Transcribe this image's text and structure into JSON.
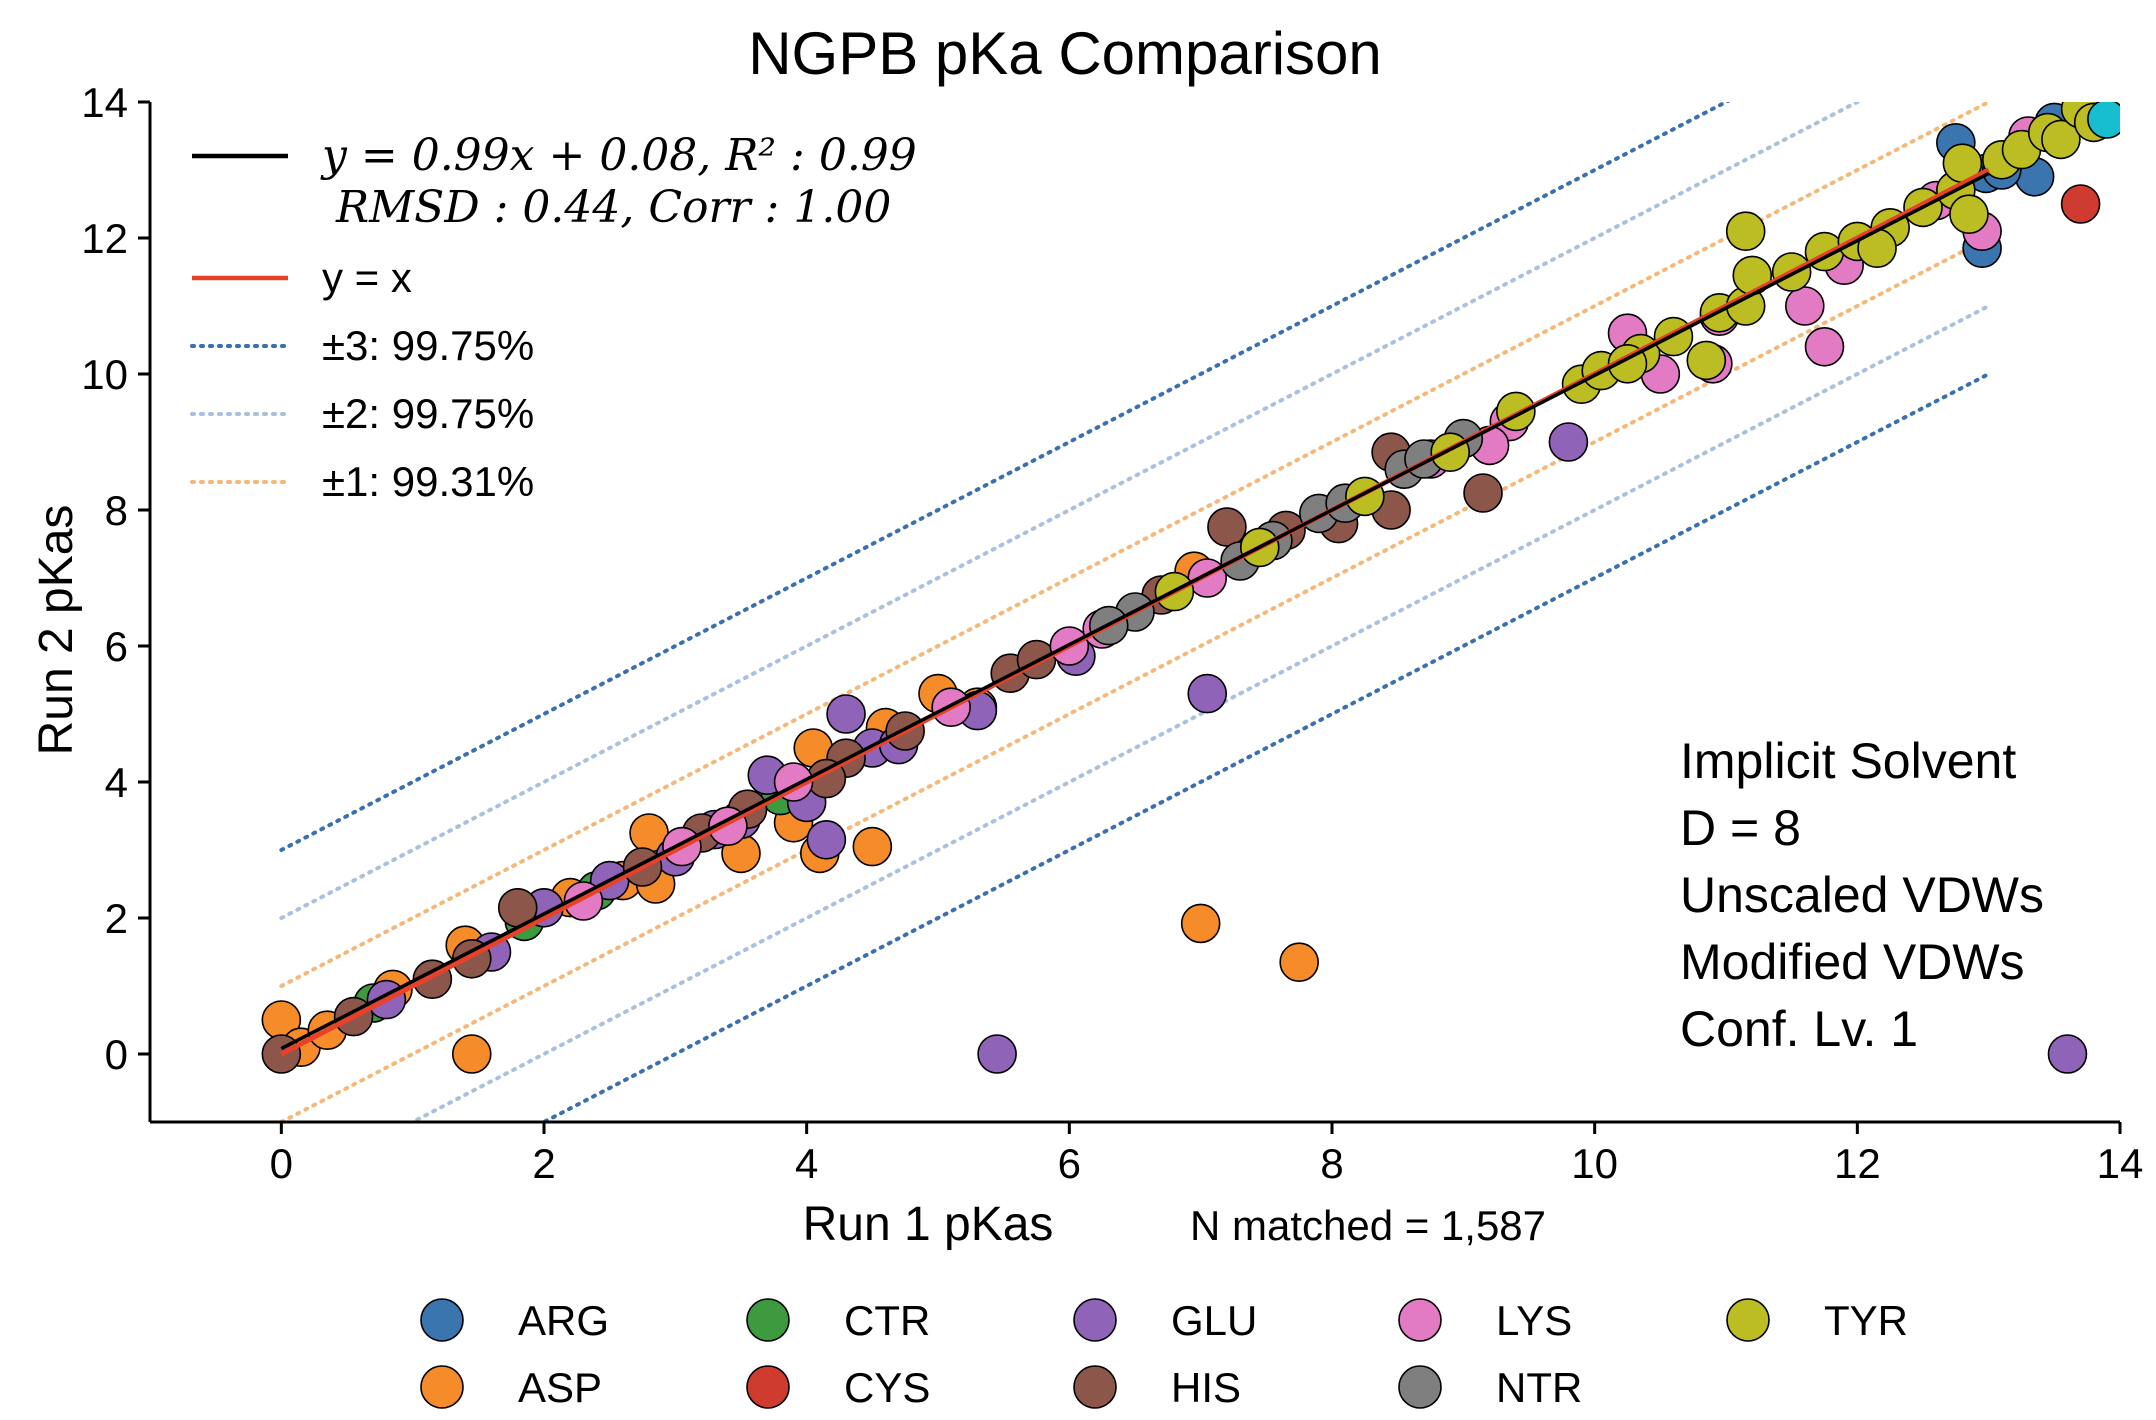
{
  "chart_data": {
    "type": "scatter",
    "title": "NGPB pKa Comparison",
    "xlabel": "Run 1 pKas",
    "ylabel": "Run 2 pKas",
    "xlim": [
      -1,
      14
    ],
    "ylim": [
      -1,
      14
    ],
    "xticks": [
      0,
      2,
      4,
      6,
      8,
      10,
      12,
      14
    ],
    "yticks": [
      0,
      2,
      4,
      6,
      8,
      10,
      12,
      14
    ],
    "n_matched": "N matched = 1,587",
    "fit_line": {
      "slope": 0.99,
      "intercept": 0.08,
      "x_range": [
        0,
        13
      ],
      "color": "#000000"
    },
    "identity_line": {
      "x_range": [
        0,
        13
      ],
      "color": "#e8412a"
    },
    "bands": [
      {
        "offset": 3,
        "color": "#3a6fb0"
      },
      {
        "offset": 2,
        "color": "#a9c0de"
      },
      {
        "offset": 1,
        "color": "#f5b878"
      }
    ],
    "line_legend": [
      {
        "label": "y = 0.99x + 0.08, R² : 0.99",
        "color": "#000000"
      },
      {
        "label": "RMSD : 0.44, Corr : 1.00",
        "color": ""
      },
      {
        "label": "y = x",
        "color": "#e8412a"
      },
      {
        "label": "±3:   99.75%",
        "color": "#3a6fb0"
      },
      {
        "label": "±2:   99.75%",
        "color": "#a9c0de"
      },
      {
        "label": "±1:   99.31%",
        "color": "#f5b878"
      }
    ],
    "annotation": [
      "Implicit Solvent",
      "D = 8",
      "Unscaled VDWs",
      "Modified VDWs",
      "Conf. Lv. 1"
    ],
    "series": [
      {
        "name": "ARG",
        "color": "#3b75af",
        "points": [
          [
            12.75,
            13.4
          ],
          [
            12.98,
            12.95
          ],
          [
            13.35,
            12.9
          ],
          [
            12.95,
            11.85
          ],
          [
            13.1,
            13.0
          ],
          [
            13.5,
            13.7
          ]
        ]
      },
      {
        "name": "ASP",
        "color": "#f58b29",
        "points": [
          [
            0.0,
            0.5
          ],
          [
            0.15,
            0.1
          ],
          [
            0.35,
            0.35
          ],
          [
            0.85,
            0.95
          ],
          [
            1.4,
            1.6
          ],
          [
            1.45,
            0.0
          ],
          [
            2.2,
            2.3
          ],
          [
            2.6,
            2.55
          ],
          [
            2.8,
            3.25
          ],
          [
            2.85,
            2.5
          ],
          [
            3.5,
            2.95
          ],
          [
            3.9,
            3.4
          ],
          [
            4.05,
            4.5
          ],
          [
            4.1,
            2.95
          ],
          [
            4.5,
            3.05
          ],
          [
            4.6,
            4.8
          ],
          [
            5.0,
            5.3
          ],
          [
            7.0,
            1.92
          ],
          [
            7.75,
            1.35
          ],
          [
            6.95,
            7.1
          ],
          [
            5.3,
            5.1
          ]
        ]
      },
      {
        "name": "CTR",
        "color": "#3d9a3e",
        "points": [
          [
            0.7,
            0.75
          ],
          [
            1.85,
            1.95
          ],
          [
            3.8,
            3.8
          ],
          [
            2.4,
            2.4
          ]
        ]
      },
      {
        "name": "CYS",
        "color": "#d03b2f",
        "points": [
          [
            13.7,
            12.5
          ]
        ]
      },
      {
        "name": "GLU",
        "color": "#8f63b8",
        "points": [
          [
            0.8,
            0.8
          ],
          [
            1.6,
            1.5
          ],
          [
            2.0,
            2.15
          ],
          [
            2.5,
            2.55
          ],
          [
            3.3,
            3.3
          ],
          [
            3.5,
            3.45
          ],
          [
            3.7,
            4.1
          ],
          [
            4.0,
            3.7
          ],
          [
            4.15,
            3.15
          ],
          [
            4.3,
            5.0
          ],
          [
            4.5,
            4.5
          ],
          [
            4.7,
            4.55
          ],
          [
            5.3,
            5.05
          ],
          [
            5.45,
            0.0
          ],
          [
            6.05,
            5.85
          ],
          [
            7.05,
            5.3
          ],
          [
            9.8,
            9.0
          ],
          [
            13.6,
            0.0
          ],
          [
            3.0,
            2.9
          ]
        ]
      },
      {
        "name": "HIS",
        "color": "#8c564b",
        "points": [
          [
            0.0,
            0.0
          ],
          [
            0.55,
            0.55
          ],
          [
            1.15,
            1.1
          ],
          [
            1.45,
            1.4
          ],
          [
            1.8,
            2.15
          ],
          [
            2.75,
            2.75
          ],
          [
            3.2,
            3.25
          ],
          [
            3.55,
            3.6
          ],
          [
            4.3,
            4.35
          ],
          [
            4.75,
            4.75
          ],
          [
            5.55,
            5.6
          ],
          [
            5.75,
            5.8
          ],
          [
            6.7,
            6.75
          ],
          [
            7.2,
            7.75
          ],
          [
            7.65,
            7.7
          ],
          [
            8.05,
            7.8
          ],
          [
            8.45,
            8.0
          ],
          [
            8.45,
            8.85
          ],
          [
            9.15,
            8.25
          ],
          [
            4.15,
            4.05
          ]
        ]
      },
      {
        "name": "LYS",
        "color": "#e27bc4",
        "points": [
          [
            2.3,
            2.25
          ],
          [
            3.05,
            3.05
          ],
          [
            3.4,
            3.35
          ],
          [
            3.9,
            4.0
          ],
          [
            5.1,
            5.1
          ],
          [
            6.0,
            6.0
          ],
          [
            6.25,
            6.25
          ],
          [
            7.05,
            7.0
          ],
          [
            8.75,
            8.75
          ],
          [
            9.35,
            9.3
          ],
          [
            10.25,
            10.6
          ],
          [
            10.5,
            10.0
          ],
          [
            10.95,
            10.85
          ],
          [
            10.9,
            10.15
          ],
          [
            11.6,
            11.0
          ],
          [
            11.75,
            10.4
          ],
          [
            11.9,
            11.6
          ],
          [
            12.6,
            12.55
          ],
          [
            12.95,
            12.1
          ],
          [
            13.3,
            13.5
          ],
          [
            9.2,
            8.95
          ]
        ]
      },
      {
        "name": "NTR",
        "color": "#7f7f7f",
        "points": [
          [
            6.5,
            6.5
          ],
          [
            7.3,
            7.25
          ],
          [
            7.55,
            7.55
          ],
          [
            7.9,
            7.95
          ],
          [
            8.1,
            8.1
          ],
          [
            8.55,
            8.6
          ],
          [
            8.7,
            8.75
          ],
          [
            9.0,
            9.05
          ],
          [
            6.3,
            6.3
          ]
        ]
      },
      {
        "name": "TYR",
        "color": "#bcbd22",
        "points": [
          [
            6.8,
            6.8
          ],
          [
            7.45,
            7.45
          ],
          [
            8.25,
            8.2
          ],
          [
            8.9,
            8.85
          ],
          [
            9.4,
            9.45
          ],
          [
            9.9,
            9.85
          ],
          [
            10.05,
            10.05
          ],
          [
            10.35,
            10.3
          ],
          [
            10.6,
            10.55
          ],
          [
            10.85,
            10.2
          ],
          [
            10.95,
            10.9
          ],
          [
            11.15,
            11.0
          ],
          [
            11.2,
            11.45
          ],
          [
            11.15,
            12.1
          ],
          [
            11.5,
            11.5
          ],
          [
            11.75,
            11.8
          ],
          [
            12.0,
            11.95
          ],
          [
            12.25,
            12.15
          ],
          [
            12.5,
            12.45
          ],
          [
            12.75,
            12.7
          ],
          [
            12.85,
            12.35
          ],
          [
            12.8,
            13.1
          ],
          [
            13.1,
            13.15
          ],
          [
            13.25,
            13.3
          ],
          [
            13.45,
            13.55
          ],
          [
            13.55,
            13.45
          ],
          [
            13.7,
            13.9
          ],
          [
            13.8,
            13.7
          ],
          [
            12.15,
            11.85
          ],
          [
            10.25,
            10.15
          ]
        ]
      },
      {
        "name": "",
        "color": "#17becf",
        "points": [
          [
            13.9,
            13.75
          ]
        ]
      }
    ]
  },
  "bottom_legend": [
    {
      "name": "ARG",
      "color": "#3b75af"
    },
    {
      "name": "CTR",
      "color": "#3d9a3e"
    },
    {
      "name": "GLU",
      "color": "#8f63b8"
    },
    {
      "name": "LYS",
      "color": "#e27bc4"
    },
    {
      "name": "TYR",
      "color": "#bcbd22"
    },
    {
      "name": "ASP",
      "color": "#f58b29"
    },
    {
      "name": "CYS",
      "color": "#d03b2f"
    },
    {
      "name": "HIS",
      "color": "#8c564b"
    },
    {
      "name": "NTR",
      "color": "#7f7f7f"
    }
  ]
}
